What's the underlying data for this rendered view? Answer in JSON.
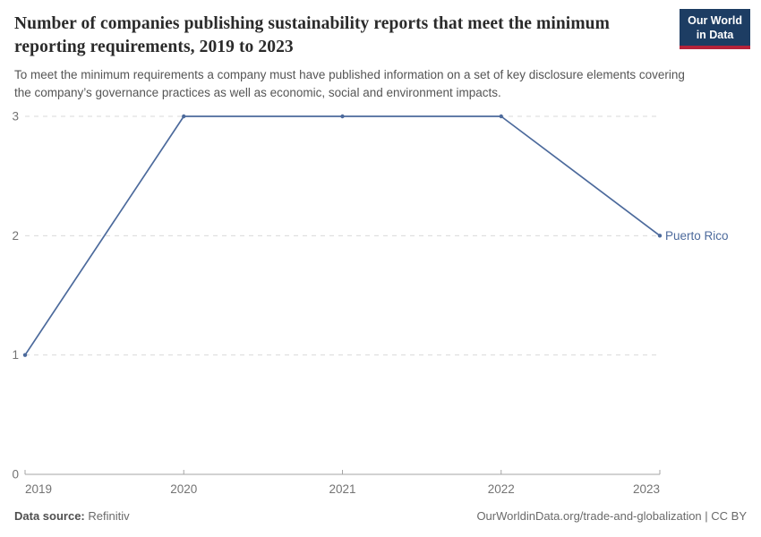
{
  "header": {
    "logo": {
      "line1": "Our World",
      "line2": "in Data"
    }
  },
  "chart_data": {
    "type": "line",
    "title": "Number of companies publishing sustainability reports that meet the minimum reporting requirements, 2019 to 2023",
    "subtitle": "To meet the minimum requirements a company must have published information on a set of key disclosure elements covering the company’s governance practices as well as economic, social and environment impacts.",
    "x": [
      2019,
      2020,
      2021,
      2022,
      2023
    ],
    "series": [
      {
        "name": "Puerto Rico",
        "values": [
          1,
          3,
          3,
          3,
          2
        ],
        "color": "#4c6a9c"
      }
    ],
    "xlabel": "",
    "ylabel": "",
    "ylim": [
      0,
      3
    ],
    "yticks": [
      0,
      1,
      2,
      3
    ],
    "xticks": [
      2019,
      2020,
      2021,
      2022,
      2023
    ],
    "grid": "horizontal-dashed",
    "legend_position": "end-of-line-label"
  },
  "colors": {
    "line_accent": "#4c6a9c",
    "logo_navy": "#1d3d63",
    "logo_red": "#b5233a",
    "grid_line": "#dadada",
    "axis_line": "#a5a5a5",
    "tick_text": "#737373"
  },
  "footer": {
    "source_label": "Data source:",
    "source_value": "Refinitiv",
    "credit": "OurWorldinData.org/trade-and-globalization | CC BY"
  }
}
